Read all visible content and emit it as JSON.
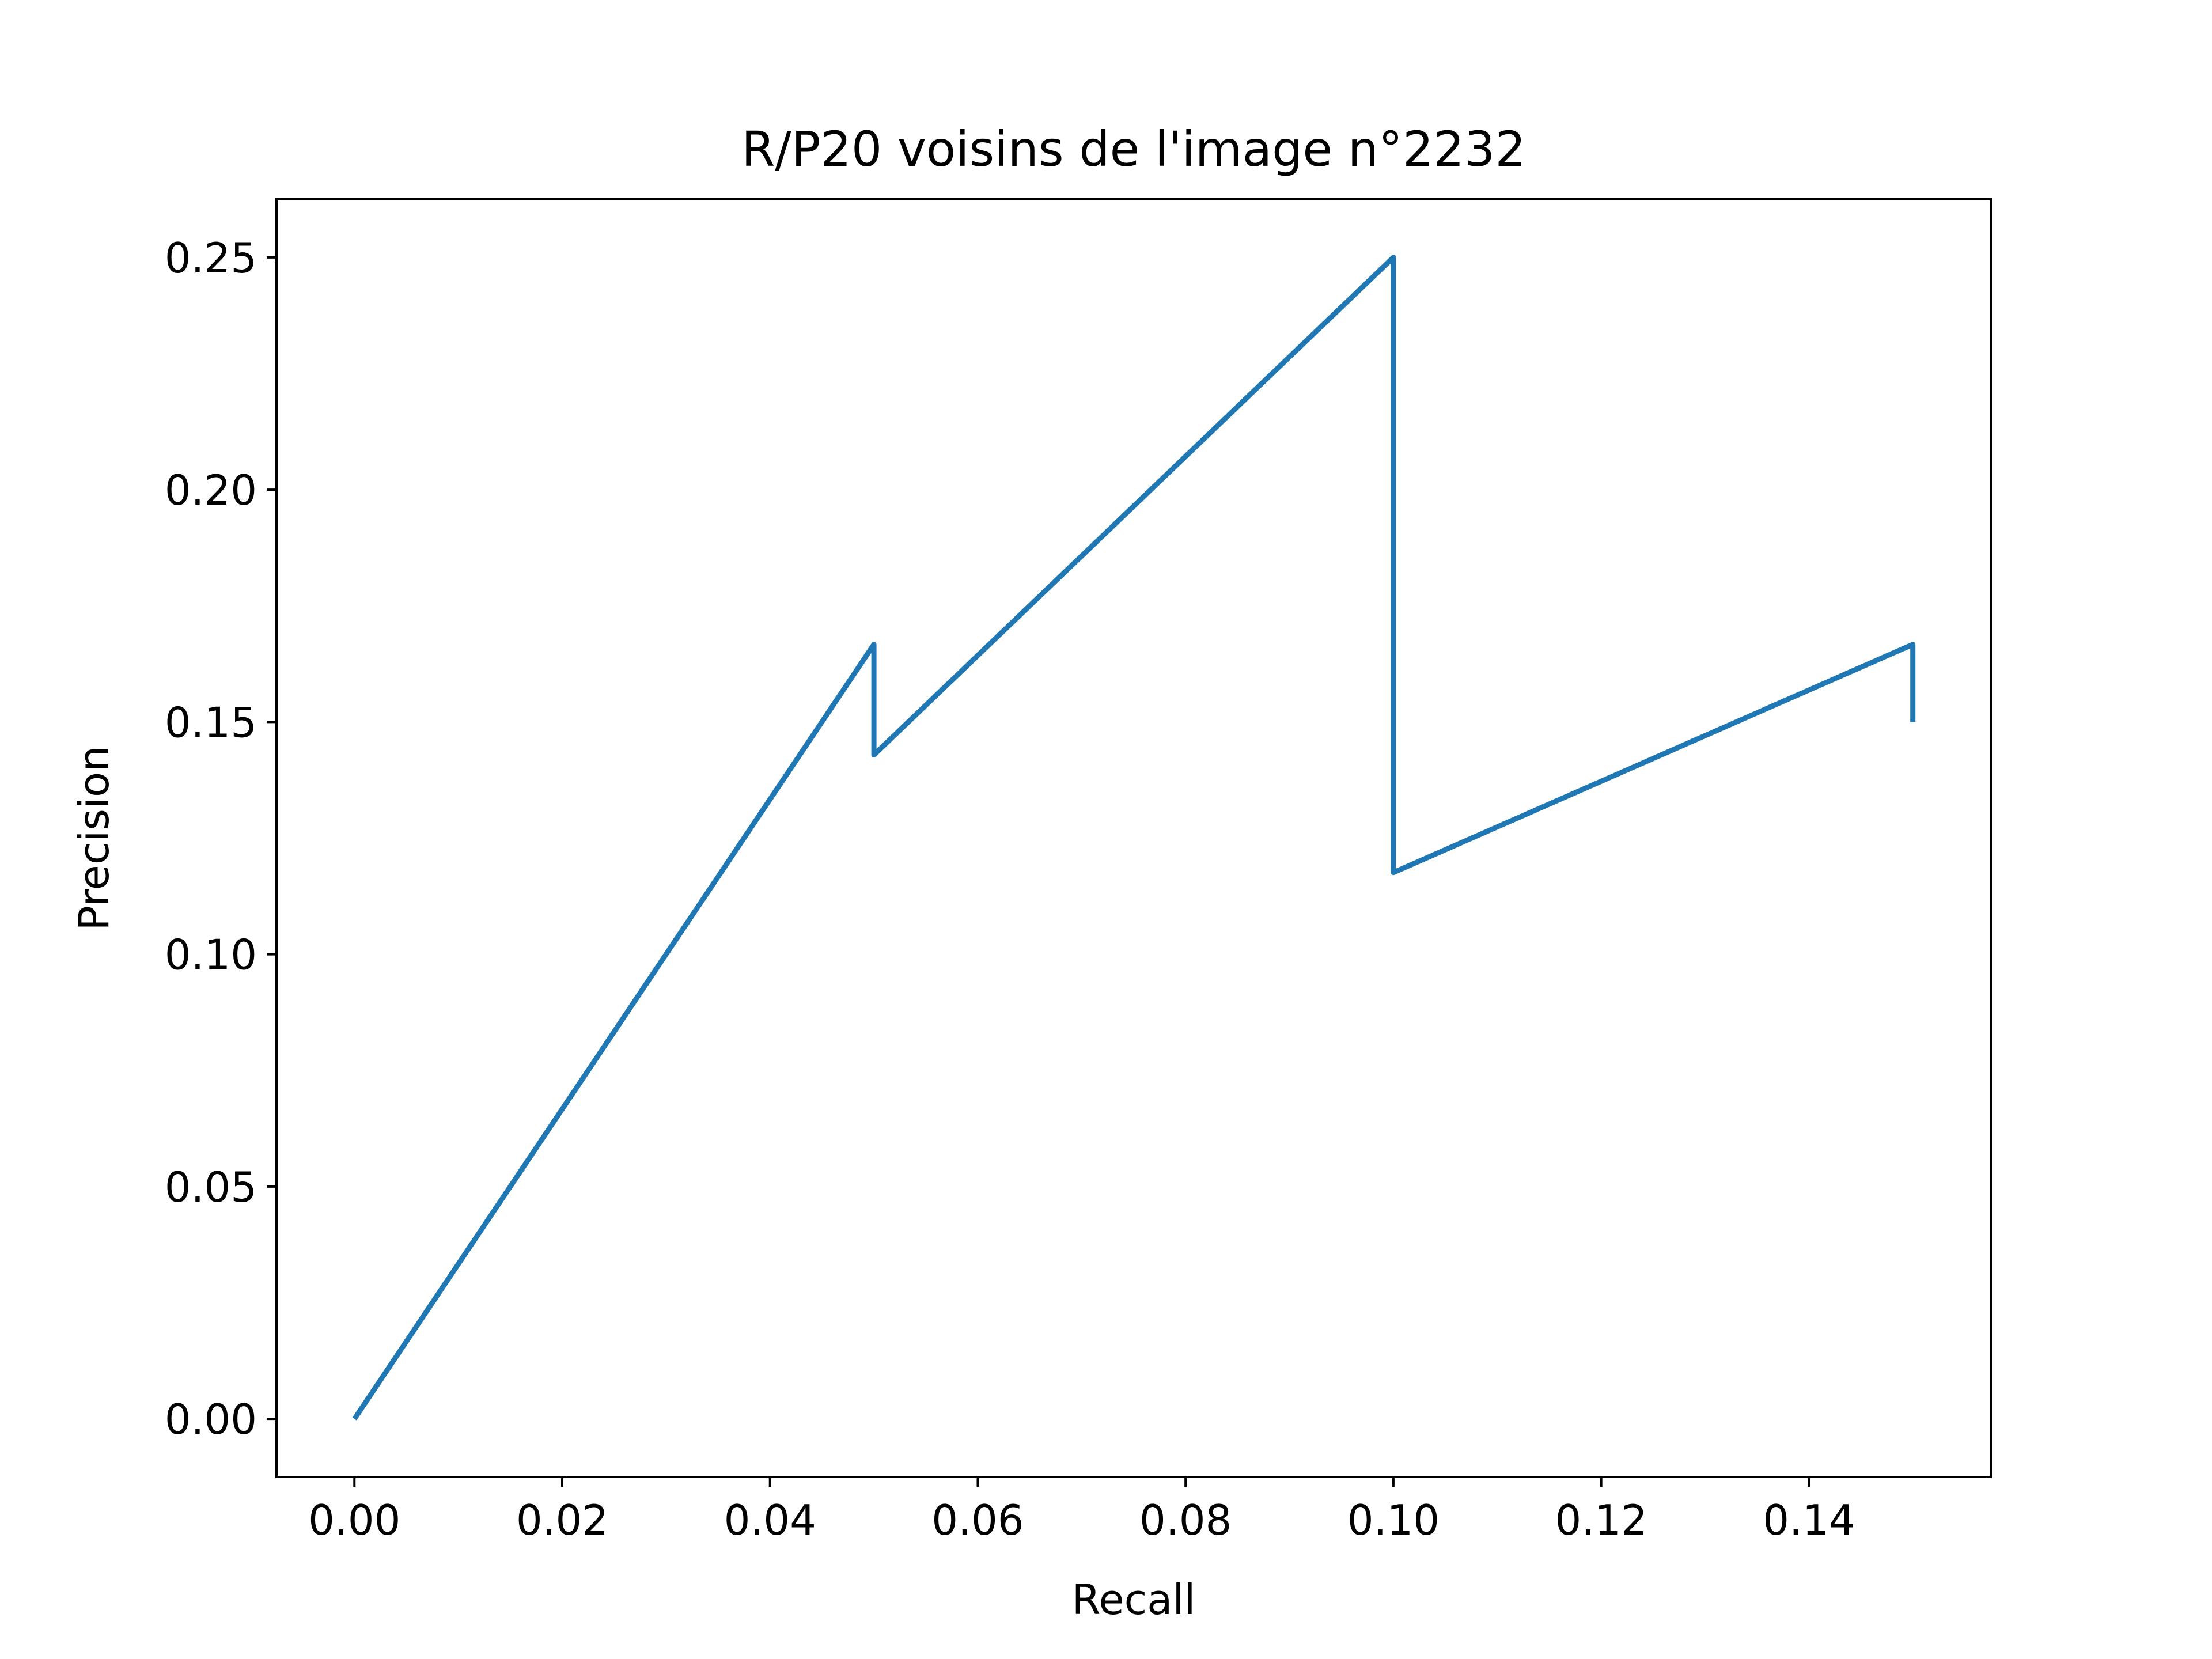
{
  "chart_data": {
    "type": "line",
    "title": "R/P20 voisins de l'image n°2232",
    "xlabel": "Recall",
    "ylabel": "Precision",
    "xlim": [
      -0.0075,
      0.1575
    ],
    "ylim": [
      -0.0125,
      0.2625
    ],
    "x_ticks": [
      0.0,
      0.02,
      0.04,
      0.06,
      0.08,
      0.1,
      0.12,
      0.14
    ],
    "x_tick_labels": [
      "0.00",
      "0.02",
      "0.04",
      "0.06",
      "0.08",
      "0.10",
      "0.12",
      "0.14"
    ],
    "y_ticks": [
      0.0,
      0.05,
      0.1,
      0.15,
      0.2,
      0.25
    ],
    "y_tick_labels": [
      "0.00",
      "0.05",
      "0.10",
      "0.15",
      "0.20",
      "0.25"
    ],
    "grid": false,
    "line_color": "#1f77b4",
    "series": [
      {
        "x": [
          0.0,
          0.05,
          0.05,
          0.1,
          0.1,
          0.15,
          0.15
        ],
        "y": [
          0.0,
          0.1667,
          0.1429,
          0.25,
          0.1176,
          0.1667,
          0.15
        ]
      }
    ]
  }
}
